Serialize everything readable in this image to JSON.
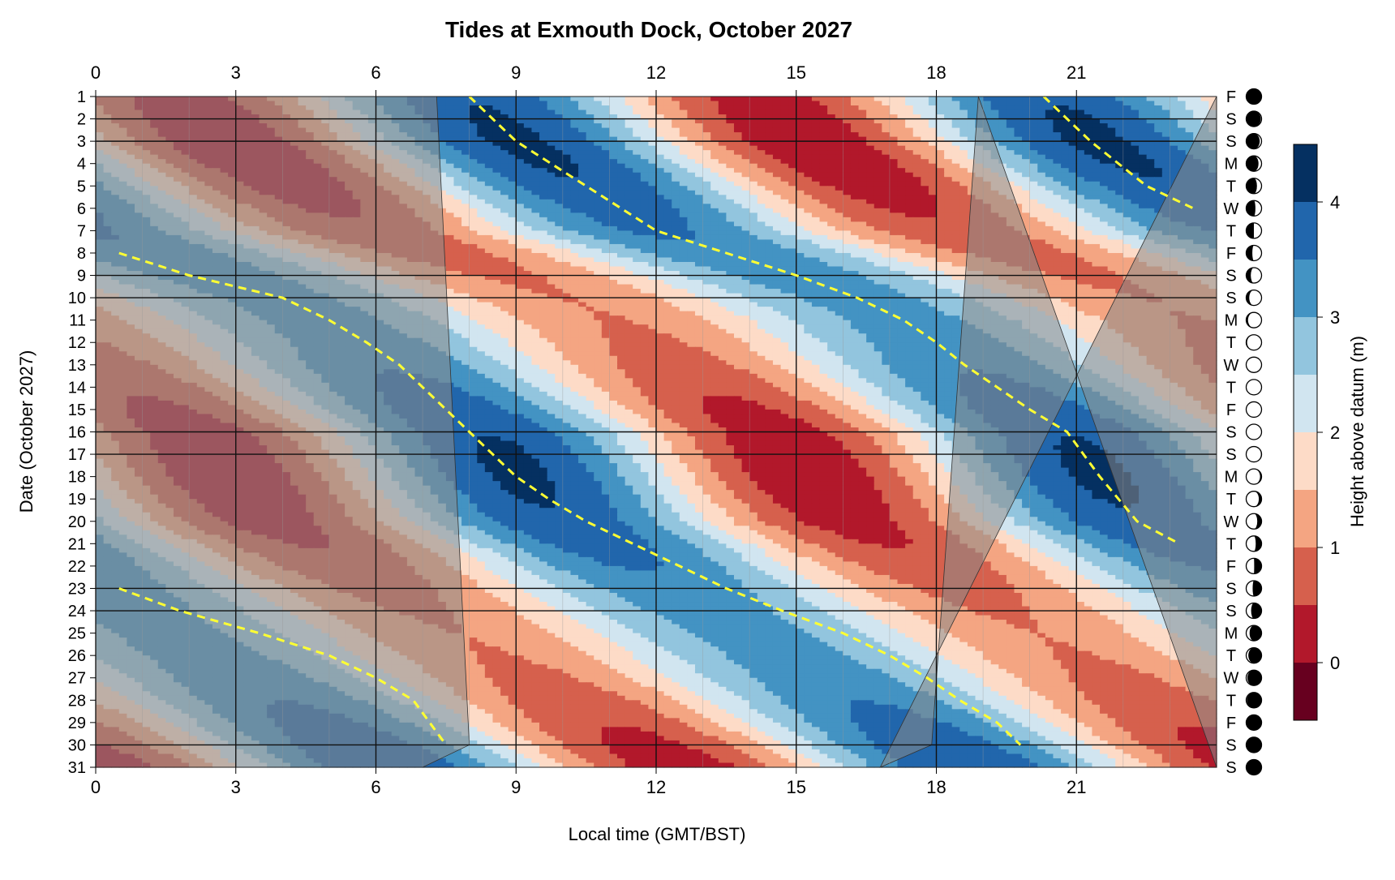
{
  "chart_data": {
    "type": "heatmap",
    "title": "Tides at Exmouth Dock, October 2027",
    "xlabel": "Local time (GMT/BST)",
    "ylabel": "Date (October 2027)",
    "colorbar_label": "Height above datum (m)",
    "xlim": [
      0,
      24
    ],
    "ylim": [
      1,
      31
    ],
    "x_ticks": [
      0,
      3,
      6,
      9,
      12,
      15,
      18,
      21
    ],
    "colorbar_ticks": [
      0,
      1,
      2,
      3,
      4
    ],
    "colorbar_range": [
      -0.5,
      4.5
    ],
    "levels": [
      -0.5,
      0,
      0.5,
      1,
      1.5,
      2,
      2.5,
      3,
      3.5,
      4,
      4.5
    ],
    "level_colors": [
      "#67001f",
      "#b2182b",
      "#d6604d",
      "#f4a582",
      "#fddbc7",
      "#d1e5f0",
      "#92c5de",
      "#4393c3",
      "#2166ac",
      "#053061"
    ],
    "daylight": [
      {
        "day": 1,
        "sunrise": 7.3,
        "sunset": 18.9
      },
      {
        "day": 30,
        "sunrise": 8.0,
        "sunset": 17.9
      },
      {
        "day": 31,
        "sunrise": 7.0,
        "sunset": 16.8
      }
    ],
    "highlighted_days": [
      2,
      3,
      9,
      10,
      16,
      17,
      23,
      24,
      30
    ],
    "tide_model": {
      "mean": 2.1,
      "amplitude": 2.0,
      "neap_days": [
        12,
        27
      ],
      "spring_days": [
        3,
        18
      ],
      "neap_amplitude_factor": 0.55
    },
    "high_water_lines": [
      [
        [
          8.0,
          1
        ],
        [
          9.0,
          3
        ],
        [
          10.5,
          5
        ],
        [
          12.0,
          7
        ],
        [
          13.5,
          8
        ],
        [
          15.0,
          9
        ],
        [
          16.3,
          10
        ],
        [
          17.3,
          11
        ],
        [
          18.0,
          12
        ],
        [
          18.6,
          13
        ],
        [
          19.3,
          14
        ],
        [
          20.0,
          15
        ],
        [
          20.8,
          16
        ],
        [
          21.5,
          18
        ],
        [
          22.3,
          20
        ],
        [
          23.2,
          21
        ]
      ],
      [
        [
          20.3,
          1
        ],
        [
          21.3,
          3
        ],
        [
          22.5,
          5
        ],
        [
          23.5,
          6
        ]
      ],
      [
        [
          0.5,
          8
        ],
        [
          2.0,
          9
        ],
        [
          4.0,
          10
        ],
        [
          5.0,
          11
        ],
        [
          5.8,
          12
        ],
        [
          6.5,
          13
        ],
        [
          7.0,
          14
        ],
        [
          7.5,
          15
        ],
        [
          8.0,
          16
        ],
        [
          8.5,
          17
        ],
        [
          9.0,
          18
        ],
        [
          9.7,
          19
        ],
        [
          10.5,
          20
        ],
        [
          11.5,
          21
        ],
        [
          12.5,
          22
        ],
        [
          13.5,
          23
        ],
        [
          14.7,
          24
        ],
        [
          16.0,
          25
        ],
        [
          17.0,
          26
        ],
        [
          17.8,
          27
        ],
        [
          18.5,
          28
        ],
        [
          19.3,
          29
        ],
        [
          19.8,
          30
        ]
      ],
      [
        [
          0.5,
          23
        ],
        [
          1.8,
          24
        ],
        [
          3.5,
          25
        ],
        [
          5.0,
          26
        ],
        [
          6.0,
          27
        ],
        [
          6.8,
          28
        ],
        [
          7.5,
          30
        ]
      ]
    ],
    "moon_phase_fraction": [
      1.0,
      0.95,
      0.88,
      0.8,
      0.7,
      0.6,
      0.5,
      0.4,
      0.3,
      0.2,
      0.12,
      0.06,
      0.02,
      0.0,
      0.0,
      0.01,
      0.04,
      0.1,
      0.18,
      0.28,
      0.38,
      0.48,
      0.58,
      0.68,
      0.78,
      0.86,
      0.92,
      0.96,
      0.99,
      1.0,
      0.98
    ],
    "moon_waxing": [
      true,
      false,
      false,
      false,
      false,
      false,
      false,
      false,
      false,
      false,
      false,
      false,
      false,
      false,
      false,
      false,
      true,
      true,
      true,
      true,
      true,
      true,
      true,
      true,
      true,
      true,
      true,
      true,
      true,
      true,
      false
    ]
  },
  "days": [
    "1",
    "2",
    "3",
    "4",
    "5",
    "6",
    "7",
    "8",
    "9",
    "10",
    "11",
    "12",
    "13",
    "14",
    "15",
    "16",
    "17",
    "18",
    "19",
    "20",
    "21",
    "22",
    "23",
    "24",
    "25",
    "26",
    "27",
    "28",
    "29",
    "30",
    "31"
  ],
  "weekdays": [
    "F",
    "S",
    "S",
    "M",
    "T",
    "W",
    "T",
    "F",
    "S",
    "S",
    "M",
    "T",
    "W",
    "T",
    "F",
    "S",
    "S",
    "M",
    "T",
    "W",
    "T",
    "F",
    "S",
    "S",
    "M",
    "T",
    "W",
    "T",
    "F",
    "S",
    "S"
  ]
}
